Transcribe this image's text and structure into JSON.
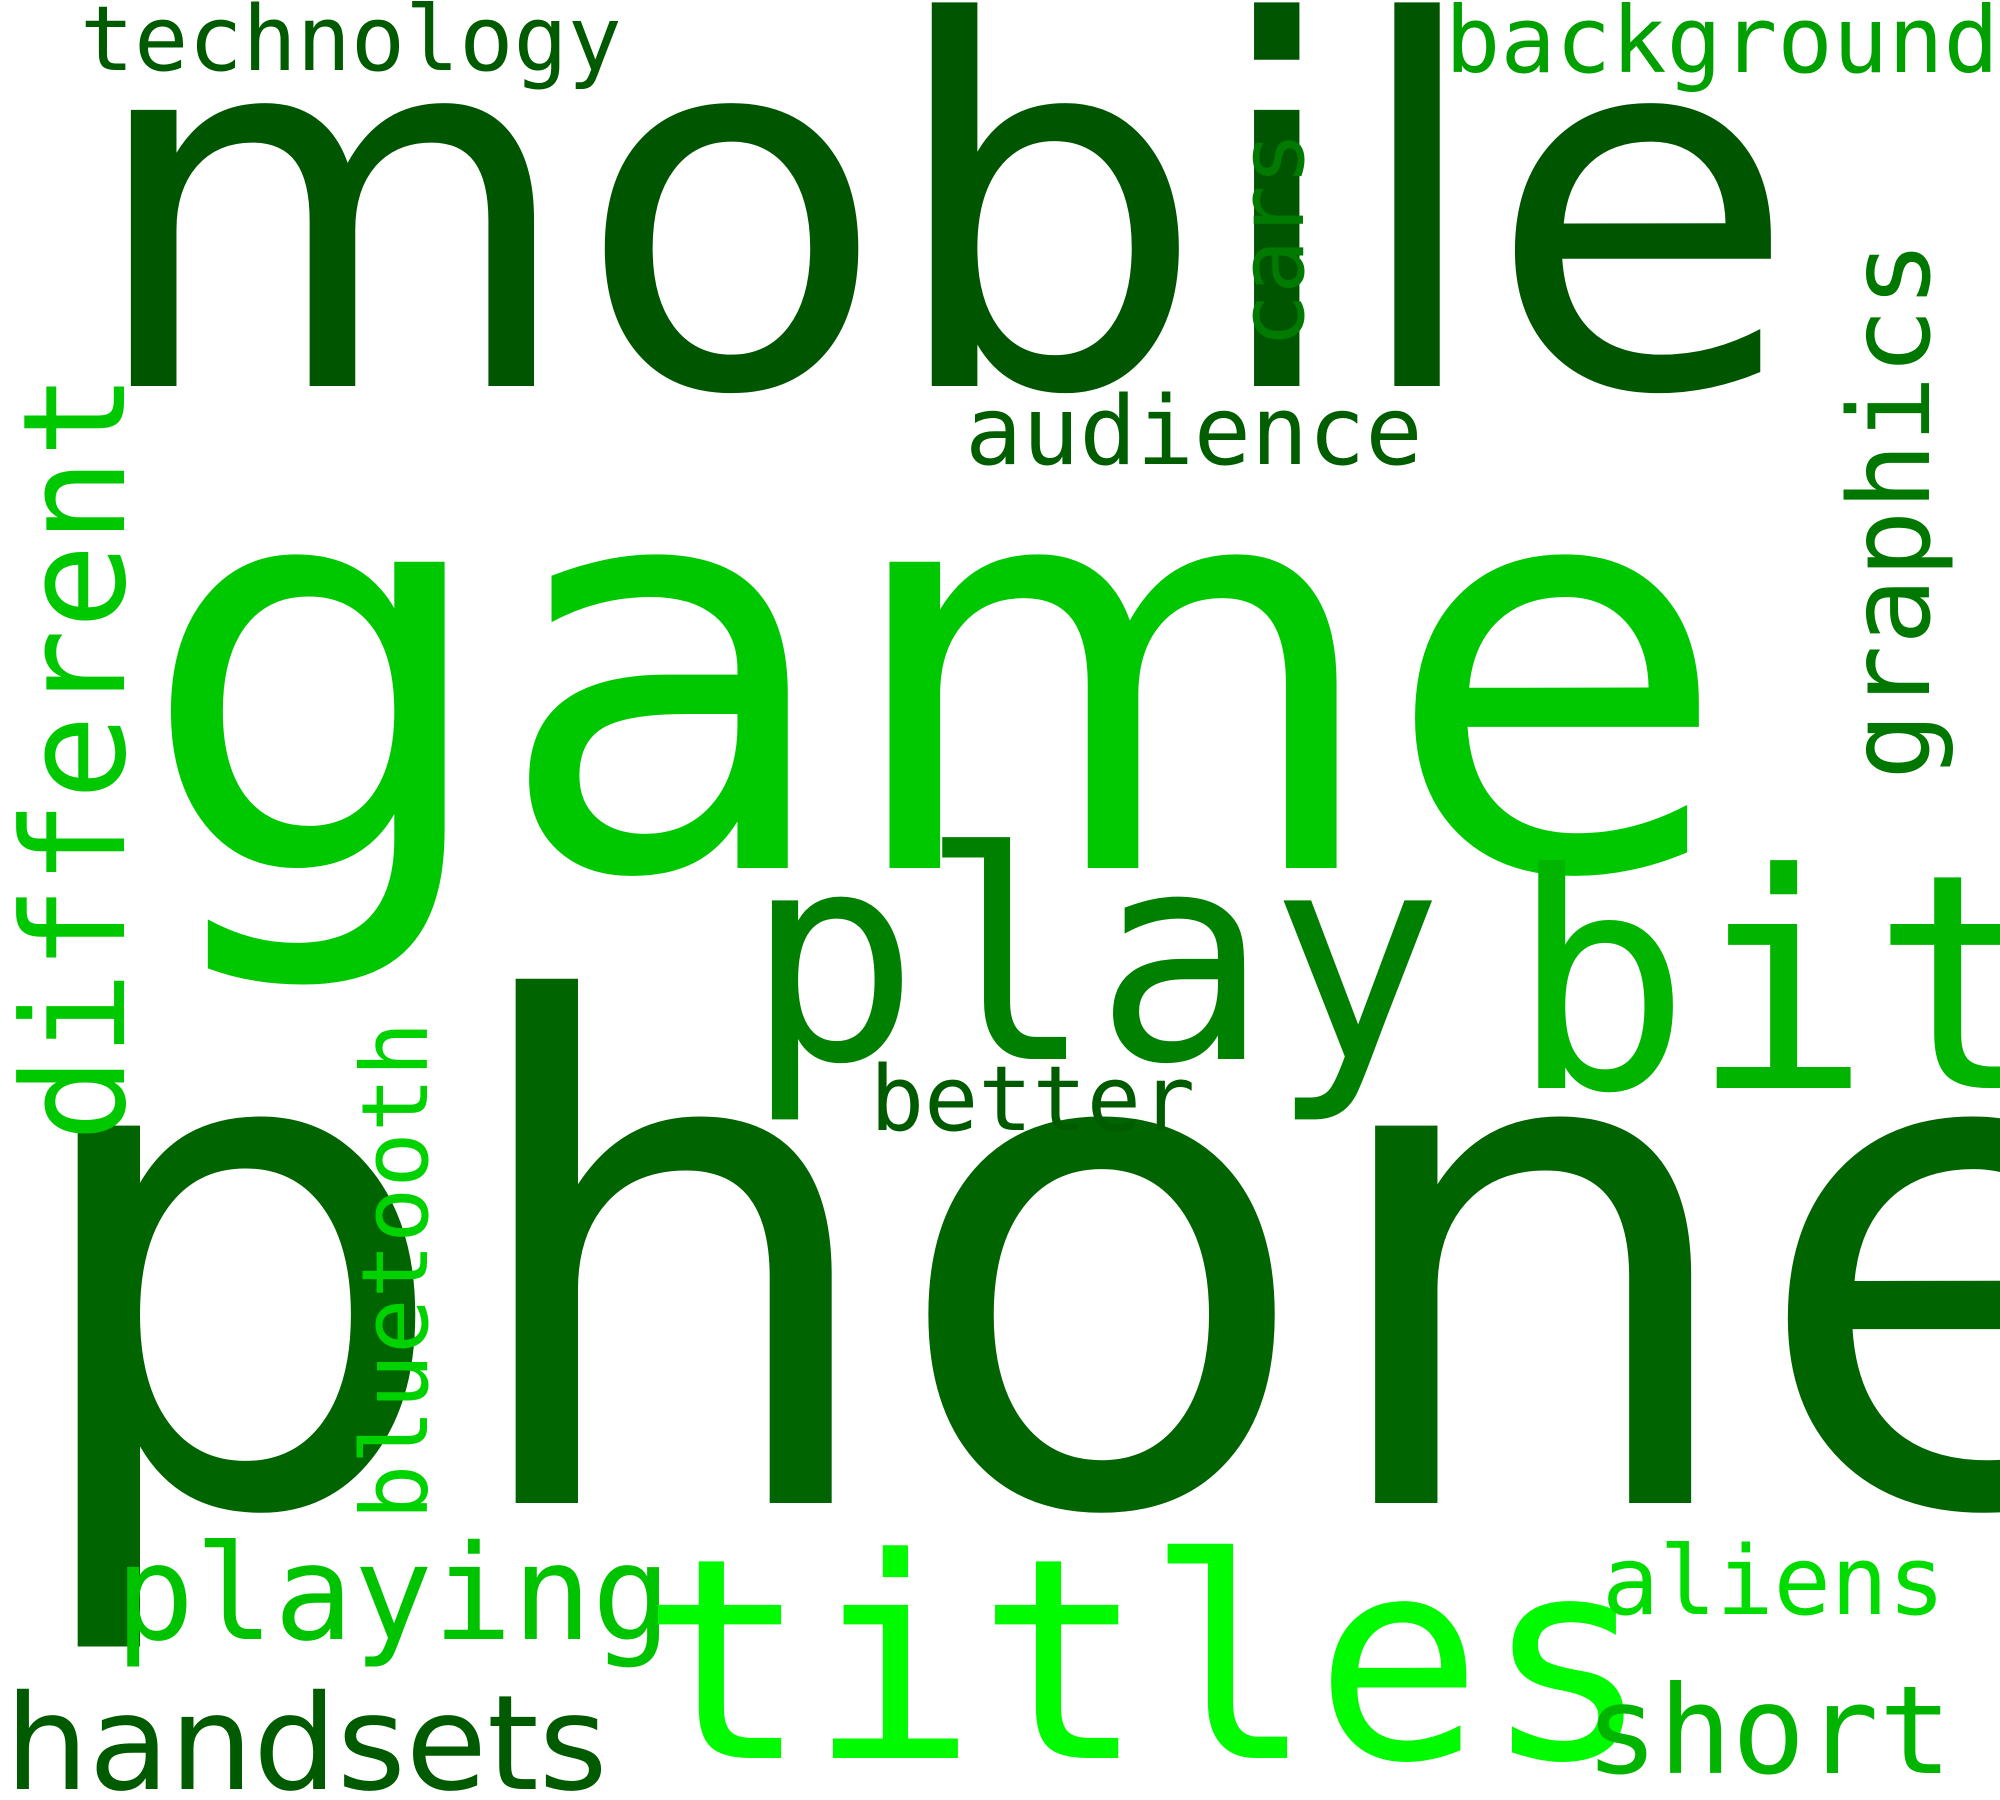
{
  "word_cloud": {
    "words": {
      "mobile": {
        "text": "mobile",
        "color": "#005500"
      },
      "game": {
        "text": "game",
        "color": "#00c800"
      },
      "phone": {
        "text": "phone",
        "color": "#006400"
      },
      "technology": {
        "text": "technology",
        "color": "#005a00"
      },
      "background": {
        "text": "background",
        "color": "#00a000"
      },
      "cars": {
        "text": "cars",
        "color": "#007a00"
      },
      "graphics": {
        "text": "graphics",
        "color": "#007800"
      },
      "audience": {
        "text": "audience",
        "color": "#005e00"
      },
      "different": {
        "text": "different",
        "color": "#00c800"
      },
      "play": {
        "text": "play",
        "color": "#008000"
      },
      "bit": {
        "text": "bit",
        "color": "#00b400"
      },
      "better": {
        "text": "better",
        "color": "#005a00"
      },
      "bluetooth": {
        "text": "bluetooth",
        "color": "#00d200"
      },
      "playing": {
        "text": "playing",
        "color": "#00c300"
      },
      "titles": {
        "text": "titles",
        "color": "#00fa00"
      },
      "aliens": {
        "text": "aliens",
        "color": "#00dc00"
      },
      "handsets": {
        "text": "handsets",
        "color": "#005a00"
      },
      "short": {
        "text": "short",
        "color": "#00b400"
      }
    }
  }
}
